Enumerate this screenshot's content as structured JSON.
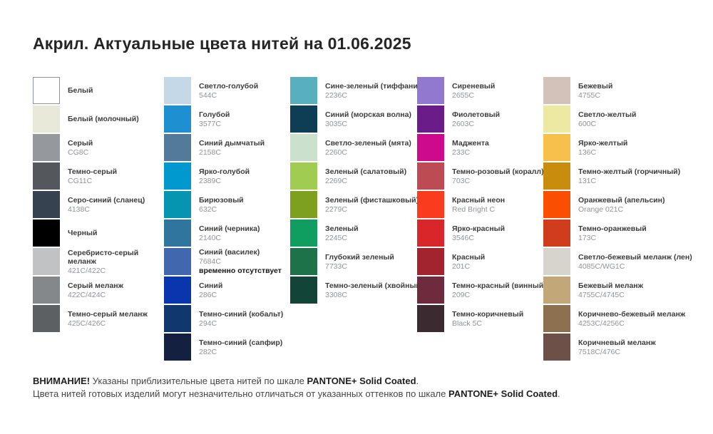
{
  "title": "Акрил. Актуальные цвета нитей на 01.06.2025",
  "columns": [
    {
      "items": [
        {
          "name": "Белый",
          "code": "",
          "color": "#ffffff",
          "border": true
        },
        {
          "name": "Белый (молочный)",
          "code": "",
          "color": "#e9e9da"
        },
        {
          "name": "Серый",
          "code": "CG8C",
          "color": "#95999e"
        },
        {
          "name": "Темно-серый",
          "code": "CG11C",
          "color": "#54575c"
        },
        {
          "name": "Серо-синий (сланец)",
          "code": "4138C",
          "color": "#36424f"
        },
        {
          "name": "Черный",
          "code": "",
          "color": "#000000"
        },
        {
          "name": "Серебристо-серый\nмеланж",
          "code": "421C/422C",
          "color": "#c0c2c4"
        },
        {
          "name": "Серый меланж",
          "code": "422C/424C",
          "color": "#85888a"
        },
        {
          "name": "Темно-серый меланж",
          "code": "425C/426C",
          "color": "#5c6063"
        }
      ]
    },
    {
      "items": [
        {
          "name": "Светло-голубой",
          "code": "544C",
          "color": "#c5d8e8"
        },
        {
          "name": "Голубой",
          "code": "3577C",
          "color": "#1e90d2"
        },
        {
          "name": "Синий дымчатый",
          "code": "2158C",
          "color": "#527a99"
        },
        {
          "name": "Ярко-голубой",
          "code": "2389C",
          "color": "#0099cf"
        },
        {
          "name": "Бирюзовый",
          "code": "632C",
          "color": "#0595b0"
        },
        {
          "name": "Синий (черника)",
          "code": "2140C",
          "color": "#30769c"
        },
        {
          "name": "Синий (василек)",
          "code": "7684C",
          "color": "#4168ae",
          "note": "временно отсутствует"
        },
        {
          "name": "Синий",
          "code": "286C",
          "color": "#0a36ad"
        },
        {
          "name": "Темно-синий (кобальт)",
          "code": "294C",
          "color": "#10386f"
        },
        {
          "name": "Темно-синий (сапфир)",
          "code": "282C",
          "color": "#13203f"
        }
      ]
    },
    {
      "items": [
        {
          "name": "Сине-зеленый (тиффани)",
          "code": "2236C",
          "color": "#58b0bf"
        },
        {
          "name": "Синий (морская волна)",
          "code": "3035C",
          "color": "#0e3e55"
        },
        {
          "name": "Светло-зеленый (мята)",
          "code": "2260C",
          "color": "#cbe0cd"
        },
        {
          "name": "Зеленый (салатовый)",
          "code": "2269C",
          "color": "#a0cc51"
        },
        {
          "name": "Зеленый (фисташковый)",
          "code": "2279C",
          "color": "#7da01e"
        },
        {
          "name": "Зеленый",
          "code": "2245C",
          "color": "#0f9d60"
        },
        {
          "name": "Глубокий зеленый",
          "code": "7733C",
          "color": "#1e7249"
        },
        {
          "name": "Темно-зеленый (хвойный)",
          "code": "3308C",
          "color": "#124437"
        }
      ]
    },
    {
      "items": [
        {
          "name": "Сиреневый",
          "code": "2655C",
          "color": "#9179d0"
        },
        {
          "name": "Фиолетовый",
          "code": "2603C",
          "color": "#6a1d89"
        },
        {
          "name": "Маджента",
          "code": "233C",
          "color": "#ce0a8c"
        },
        {
          "name": "Темно-розовый (коралл)",
          "code": "703C",
          "color": "#bc4b53"
        },
        {
          "name": "Красный неон",
          "code": "Red Bright C",
          "color": "#fb3b1e"
        },
        {
          "name": "Ярко-красный",
          "code": "3546C",
          "color": "#d8262b"
        },
        {
          "name": "Красный",
          "code": "201C",
          "color": "#a2242f"
        },
        {
          "name": "Темно-красный (винный)",
          "code": "209C",
          "color": "#6f2b3e"
        },
        {
          "name": "Темно-коричневый",
          "code": "Black 5C",
          "color": "#3c2a31"
        }
      ]
    },
    {
      "items": [
        {
          "name": "Бежевый",
          "code": "4755C",
          "color": "#d3c2ba"
        },
        {
          "name": "Светло-желтый",
          "code": "600C",
          "color": "#ede8a2"
        },
        {
          "name": "Ярко-желтый",
          "code": "136C",
          "color": "#f7c04b"
        },
        {
          "name": "Темно-желтый (горчичный)",
          "code": "131C",
          "color": "#c98d0e"
        },
        {
          "name": "Оранжевый (апельсин)",
          "code": "Orange 021C",
          "color": "#fa4f00"
        },
        {
          "name": "Темно-оранжевый",
          "code": "173C",
          "color": "#cf3d1d"
        },
        {
          "name": "Светло-бежевый меланж (лен)",
          "code": "4085C/WG1C",
          "color": "#d6d4cc"
        },
        {
          "name": "Бежевый меланж",
          "code": "4755C/4745C",
          "color": "#c2a878"
        },
        {
          "name": "Коричнево-бежевый меланж",
          "code": "4253C/4256C",
          "color": "#8c7050"
        },
        {
          "name": "Коричневый меланж",
          "code": "7518C/476C",
          "color": "#6d5149"
        }
      ]
    }
  ],
  "footer": {
    "attention": "ВНИМАНИЕ!",
    "line1_text": " Указаны приблизительные цвета нитей по шкале ",
    "line1_bold": "PANTONE+ Solid Coated",
    "line1_end": ".",
    "line2_text": "Цвета нитей готовых изделий могут незначительно отличаться от указанных оттенков по шкале ",
    "line2_bold": "PANTONE+ Solid Coated",
    "line2_end": "."
  }
}
